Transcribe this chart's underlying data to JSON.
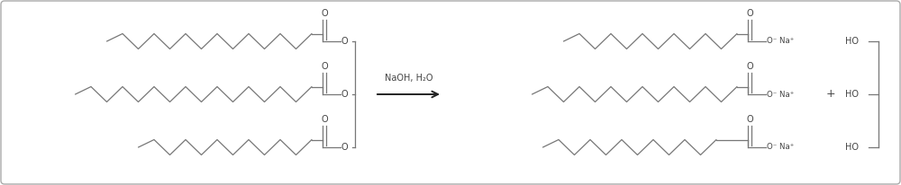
{
  "background_color": "#ffffff",
  "border_color": "#aaaaaa",
  "chain_color": "#777777",
  "text_color": "#444444",
  "arrow_color": "#222222",
  "reagent_text": "NaOH, H₂O",
  "ona_text": "O⁻ Na⁺",
  "ho_text": "HO",
  "plus_text": "+",
  "fig_width": 10.0,
  "fig_height": 2.06,
  "dpi": 100,
  "font_size": 7.0,
  "small_font_size": 6.2
}
